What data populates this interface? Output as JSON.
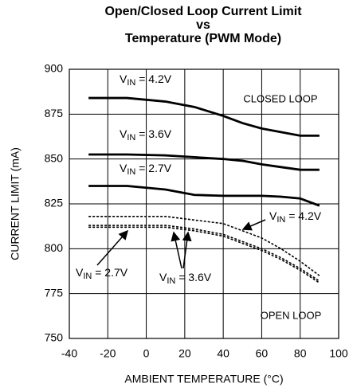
{
  "chart_data": {
    "type": "line",
    "title": [
      "Open/Closed Loop Current Limit",
      "vs",
      "Temperature (PWM Mode)"
    ],
    "x_label": "AMBIENT TEMPERATURE (°C)",
    "y_label": "CURRENT LIMIT (mA)",
    "annotations": [
      "CLOSED LOOP",
      "OPEN LOOP"
    ],
    "x": [
      -30,
      -10,
      10,
      25,
      40,
      50,
      60,
      70,
      80,
      90
    ],
    "series": [
      {
        "name": "VIN = 4.2V",
        "color": "#000000",
        "dashed": false,
        "values": [
          884,
          884,
          882,
          879,
          874,
          870,
          867,
          865,
          863,
          863
        ]
      },
      {
        "name": "VIN = 3.6V",
        "color": "#000000",
        "dashed": false,
        "values": [
          852.5,
          852.5,
          852,
          851,
          850,
          849,
          847,
          845.5,
          844,
          844
        ]
      },
      {
        "name": "VIN = 2.7V",
        "color": "#000000",
        "dashed": false,
        "values": [
          835,
          835,
          833,
          830,
          829.5,
          829.5,
          829.5,
          829,
          828,
          824
        ]
      },
      {
        "name": "VIN = 4.2V",
        "color": "#000000",
        "dashed": true,
        "values": [
          818,
          818,
          818,
          816,
          814,
          810,
          806,
          800,
          793,
          785
        ]
      },
      {
        "name": "VIN = 3.6V",
        "color": "#000000",
        "dashed": true,
        "values": [
          813,
          813,
          813,
          811,
          808,
          804,
          800,
          795,
          789,
          782
        ]
      },
      {
        "name": "VIN = 2.7V",
        "color": "#000000",
        "dashed": true,
        "values": [
          812,
          812,
          812,
          810,
          807,
          803,
          799,
          794,
          788,
          781
        ]
      }
    ],
    "xlim": [
      -40,
      100
    ],
    "xticks": [
      -40,
      -20,
      0,
      20,
      40,
      60,
      80,
      100
    ],
    "ylim": [
      750,
      900
    ],
    "yticks": [
      750,
      775,
      800,
      825,
      850,
      875,
      900
    ],
    "grid": true
  }
}
